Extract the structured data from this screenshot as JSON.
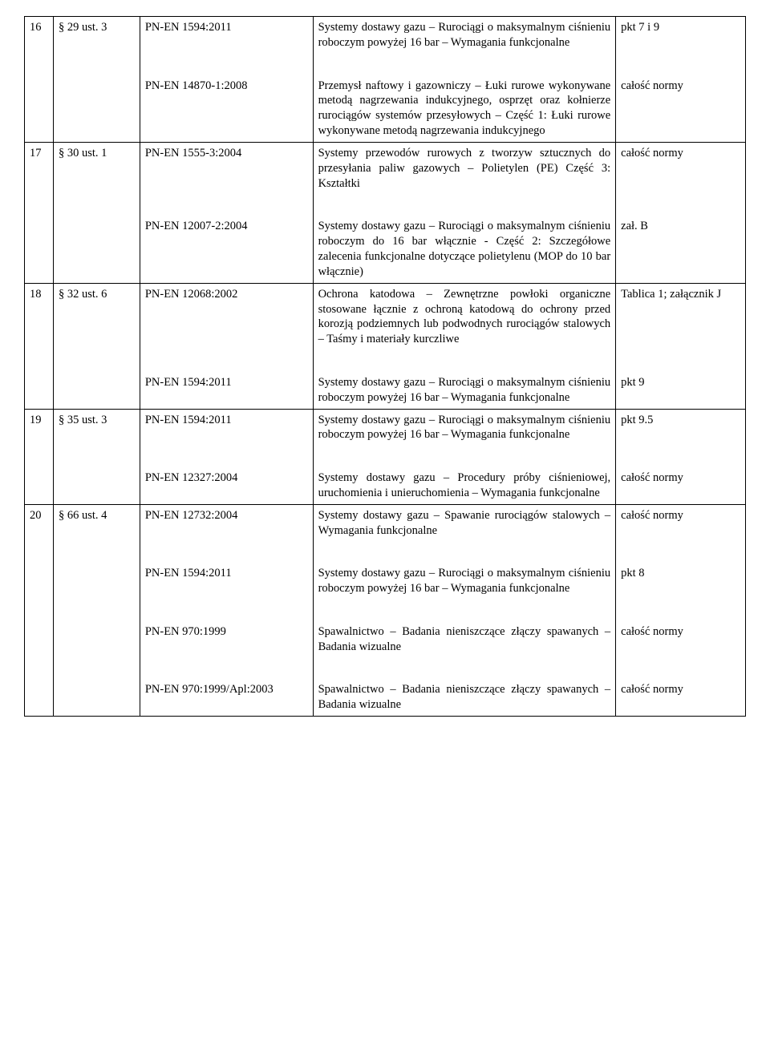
{
  "rows": [
    {
      "num": "16",
      "ref": "§ 29 ust. 3",
      "groups": [
        {
          "std": "PN-EN 1594:2011",
          "desc": "Systemy dostawy gazu – Rurociągi o maksymalnym ciśnieniu roboczym powyżej 16 bar – Wymagania funkcjonalne",
          "notes": "pkt 7 i 9"
        },
        {
          "std": "PN-EN 14870-1:2008",
          "desc": "Przemysł naftowy i gazowniczy – Łuki rurowe wykonywane metodą nagrzewania indukcyjnego, osprzęt oraz kołnierze rurociągów systemów przesyłowych – Część 1: Łuki rurowe wykonywane metodą nagrzewania indukcyjnego",
          "notes": "całość normy"
        }
      ]
    },
    {
      "num": "17",
      "ref": "§ 30 ust. 1",
      "groups": [
        {
          "std": "PN-EN 1555-3:2004",
          "desc": "Systemy przewodów rurowych z tworzyw sztucznych do przesyłania paliw gazowych – Polietylen (PE) Część 3: Kształtki",
          "notes": "całość normy"
        },
        {
          "std": "PN-EN 12007-2:2004",
          "desc": "Systemy dostawy gazu – Rurociągi o maksymalnym ciśnieniu roboczym do 16 bar włącznie - Część 2: Szczegółowe zalecenia funkcjonalne dotyczące polietylenu (MOP do 10 bar włącznie)",
          "notes": "zał. B"
        }
      ]
    },
    {
      "num": "18",
      "ref": "§ 32 ust. 6",
      "groups": [
        {
          "std": "PN-EN 12068:2002",
          "desc": "Ochrona katodowa – Zewnętrzne powłoki organiczne stosowane łącznie z ochroną katodową do ochrony przed korozją podziemnych lub podwodnych rurociągów stalowych – Taśmy i materiały kurczliwe",
          "notes": "Tablica 1; załącznik J"
        },
        {
          "std": "PN-EN 1594:2011",
          "desc": "Systemy dostawy gazu – Rurociągi o maksymalnym ciśnieniu roboczym powyżej 16 bar – Wymagania funkcjonalne",
          "notes": "pkt 9"
        }
      ]
    },
    {
      "num": "19",
      "ref": "§ 35 ust. 3",
      "groups": [
        {
          "std": "PN-EN 1594:2011",
          "desc": "Systemy dostawy gazu – Rurociągi o maksymalnym ciśnieniu roboczym powyżej 16 bar – Wymagania funkcjonalne",
          "notes": "pkt 9.5"
        },
        {
          "std": "PN-EN 12327:2004",
          "desc": "Systemy dostawy gazu – Procedury próby ciśnieniowej, uruchomienia i unieruchomienia – Wymagania funkcjonalne",
          "notes": "całość normy"
        }
      ]
    },
    {
      "num": "20",
      "ref": "§ 66 ust. 4",
      "groups": [
        {
          "std": "PN-EN 12732:2004",
          "desc": "Systemy dostawy gazu – Spawanie rurociągów stalowych – Wymagania funkcjonalne",
          "notes": "całość normy"
        },
        {
          "std": "PN-EN 1594:2011",
          "desc": "Systemy dostawy gazu – Rurociągi o maksymalnym ciśnieniu roboczym powyżej 16 bar – Wymagania funkcjonalne",
          "notes": "pkt 8"
        },
        {
          "std": "PN-EN 970:1999",
          "desc": "Spawalnictwo – Badania nieniszczące złączy spawanych – Badania wizualne",
          "notes": "całość normy"
        },
        {
          "std": "PN-EN 970:1999/Apl:2003",
          "desc": "Spawalnictwo – Badania nieniszczące złączy spawanych – Badania wizualne",
          "notes": "całość normy"
        }
      ]
    }
  ]
}
